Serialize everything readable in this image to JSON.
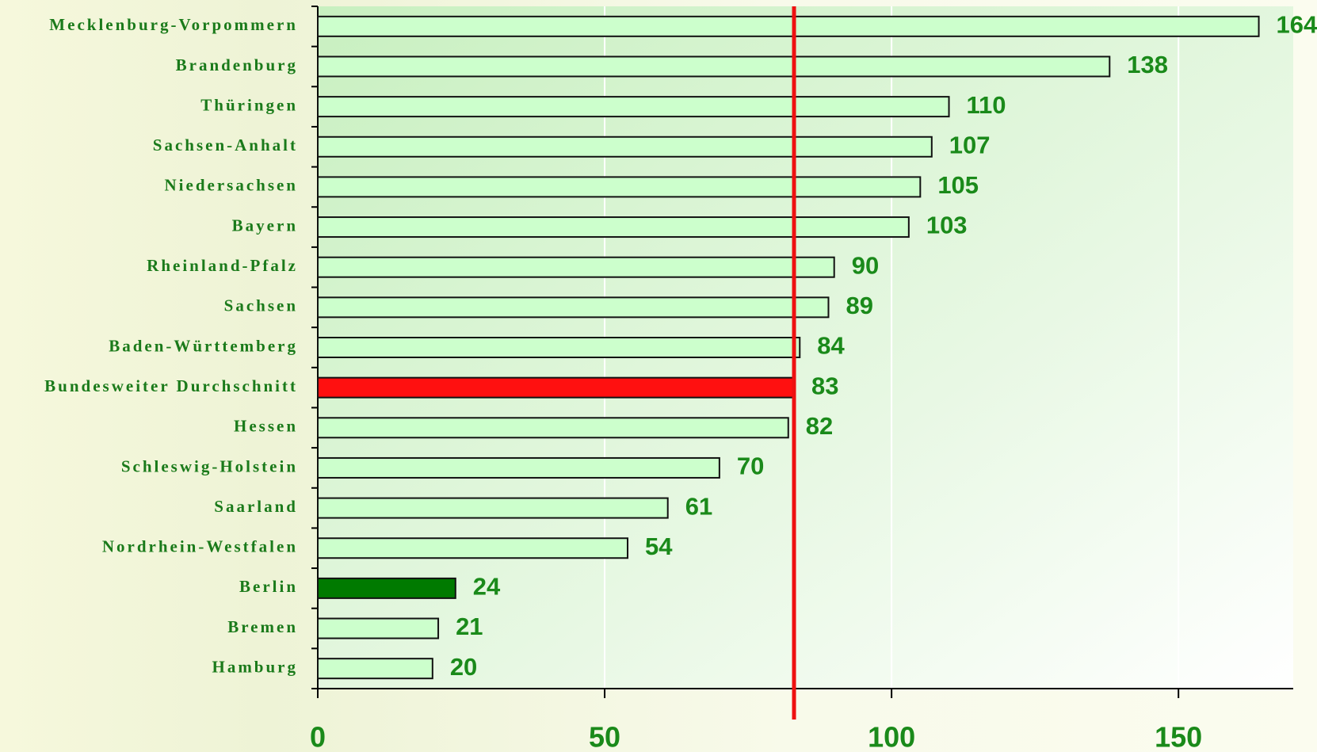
{
  "chart_data": {
    "type": "hbar",
    "categories": [
      "Mecklenburg-Vorpommern",
      "Brandenburg",
      "Thüringen",
      "Sachsen-Anhalt",
      "Niedersachsen",
      "Bayern",
      "Rheinland-Pfalz",
      "Sachsen",
      "Baden-Württemberg",
      "Bundesweiter Durchschnitt",
      "Hessen",
      "Schleswig-Holstein",
      "Saarland",
      "Nordrhein-Westfalen",
      "Berlin",
      "Bremen",
      "Hamburg"
    ],
    "values": [
      164,
      138,
      110,
      107,
      105,
      103,
      90,
      89,
      84,
      83,
      82,
      70,
      61,
      54,
      24,
      21,
      20
    ],
    "colors": [
      "#ccffcc",
      "#ccffcc",
      "#ccffcc",
      "#ccffcc",
      "#ccffcc",
      "#ccffcc",
      "#ccffcc",
      "#ccffcc",
      "#ccffcc",
      "#ff1010",
      "#ccffcc",
      "#ccffcc",
      "#ccffcc",
      "#ccffcc",
      "#007a00",
      "#ccffcc",
      "#ccffcc"
    ],
    "xlim": [
      0,
      170
    ],
    "xticks": [
      0,
      50,
      100,
      150
    ],
    "grid": true,
    "reference_line_color": "#ee1111"
  }
}
